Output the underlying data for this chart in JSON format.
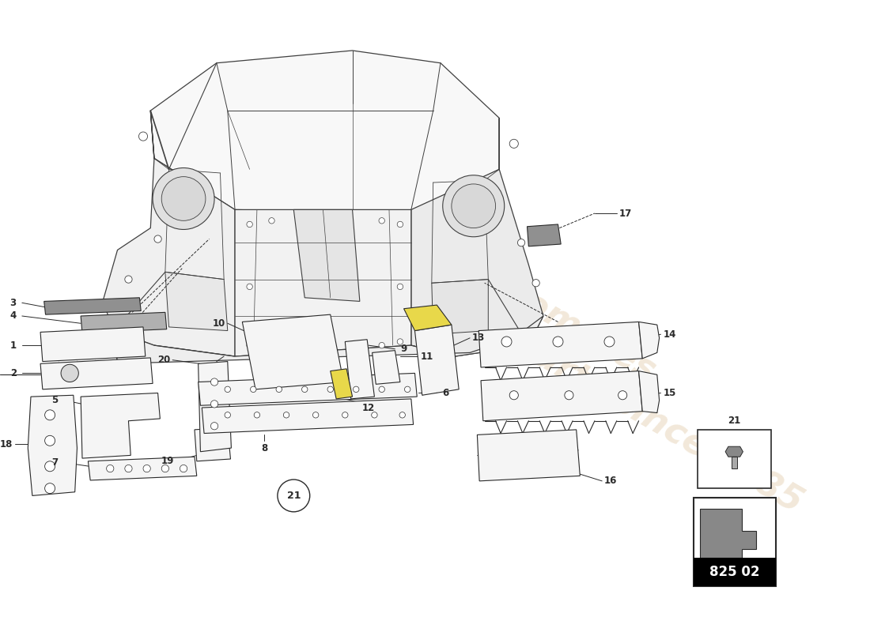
{
  "background_color": "#ffffff",
  "line_color": "#2a2a2a",
  "car_line_color": "#404040",
  "part_fill": "#f5f5f5",
  "part_edge": "#2a2a2a",
  "yellow_fill": "#e8d84a",
  "dark_fill": "#888888",
  "watermark_color": "#d4b483",
  "watermark_alpha": 0.3,
  "part_number": "825 02",
  "labels": [
    "1",
    "2",
    "3",
    "4",
    "5",
    "6",
    "7",
    "8",
    "9",
    "10",
    "11",
    "12",
    "13",
    "14",
    "15",
    "16",
    "17",
    "18",
    "19",
    "20",
    "21"
  ]
}
